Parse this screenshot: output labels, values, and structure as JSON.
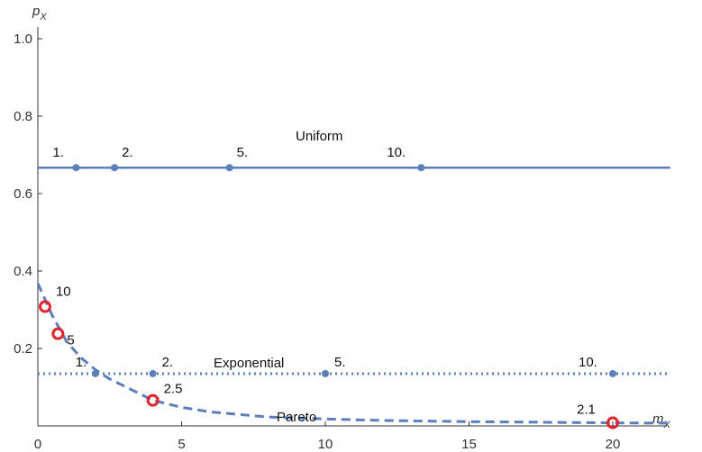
{
  "chart_data": {
    "type": "line",
    "xlabel": "m",
    "xlabel_sub": "X",
    "ylabel": "p",
    "ylabel_sub": "X",
    "xlim": [
      0,
      22
    ],
    "ylim": [
      0,
      1.0
    ],
    "x_ticks": [
      0,
      5,
      10,
      15,
      20
    ],
    "x_tick_labels": [
      "0",
      "5",
      "10",
      "15",
      "20"
    ],
    "y_ticks": [
      0.2,
      0.4,
      0.6,
      0.8,
      1.0
    ],
    "y_tick_labels": [
      "0.2",
      "0.4",
      "0.6",
      "0.8",
      "1.0"
    ],
    "grid": false,
    "colors": {
      "series": "#5b7fba",
      "pareto": "#5b7fba",
      "marker_ring": "#e3232c",
      "axis": "#333333"
    },
    "series": [
      {
        "name": "Uniform",
        "style": "solid",
        "x": [
          0,
          22
        ],
        "y": [
          0.667,
          0.667
        ],
        "points": [
          {
            "x": 1.333,
            "y": 0.667,
            "label": "1."
          },
          {
            "x": 2.667,
            "y": 0.667,
            "label": "2."
          },
          {
            "x": 6.667,
            "y": 0.667,
            "label": "5."
          },
          {
            "x": 13.333,
            "y": 0.667,
            "label": "10."
          }
        ]
      },
      {
        "name": "Exponential",
        "style": "dotted",
        "x": [
          0,
          22
        ],
        "y": [
          0.135,
          0.135
        ],
        "points": [
          {
            "x": 2.0,
            "y": 0.135,
            "label": "1."
          },
          {
            "x": 4.0,
            "y": 0.135,
            "label": "2."
          },
          {
            "x": 10.0,
            "y": 0.135,
            "label": "5."
          },
          {
            "x": 20.0,
            "y": 0.135,
            "label": "10."
          }
        ]
      },
      {
        "name": "Pareto",
        "style": "dashed",
        "x": [
          0,
          0.5,
          1,
          1.5,
          2,
          2.5,
          3,
          4,
          5,
          6,
          8,
          10,
          12,
          15,
          18,
          20,
          22
        ],
        "y": [
          0.368,
          0.285,
          0.218,
          0.176,
          0.145,
          0.121,
          0.103,
          0.066,
          0.048,
          0.036,
          0.023,
          0.018,
          0.014,
          0.011,
          0.009,
          0.008,
          0.007
        ],
        "points": [
          {
            "x": 0.25,
            "y": 0.308,
            "label": "10"
          },
          {
            "x": 0.7,
            "y": 0.238,
            "label": "5"
          },
          {
            "x": 4.0,
            "y": 0.066,
            "label": "2.5"
          },
          {
            "x": 20.0,
            "y": 0.008,
            "label": "2.1"
          }
        ]
      }
    ]
  }
}
